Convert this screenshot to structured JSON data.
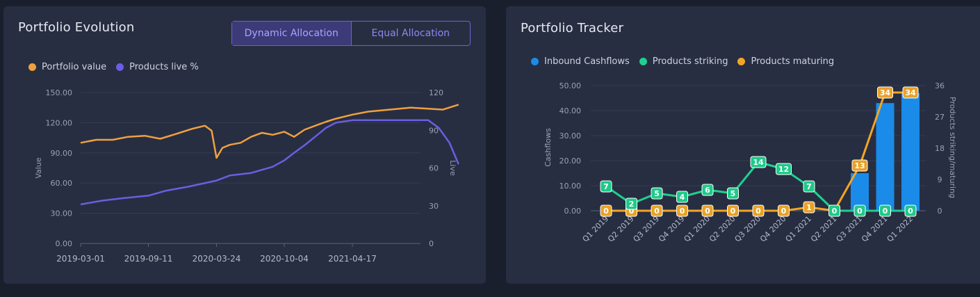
{
  "left_panel": {
    "title": "Portfolio Evolution",
    "toggle": {
      "dynamic_label": "Dynamic Allocation",
      "equal_label": "Equal Allocation",
      "active": "dynamic"
    }
  },
  "right_panel": {
    "title": "Portfolio Tracker"
  },
  "chart_data": [
    {
      "type": "line",
      "title": "Portfolio Evolution",
      "ylabel": "Value",
      "y2label": "Live",
      "ylim": [
        0,
        150
      ],
      "y2lim": [
        0,
        120
      ],
      "y_ticks": [
        "0.00",
        "30.00",
        "60.00",
        "90.00",
        "120.00",
        "150.00"
      ],
      "y2_ticks": [
        "0",
        "30",
        "60",
        "90",
        "120"
      ],
      "x_ticks": [
        "2019-03-01",
        "2019-09-11",
        "2020-03-24",
        "2020-10-04",
        "2021-04-17"
      ],
      "legend": [
        "Portfolio value",
        "Products live %"
      ],
      "legend_position": "top-left",
      "grid": true,
      "series": [
        {
          "name": "Portfolio value",
          "color": "#f0a040",
          "axis": "left",
          "x": [
            "2019-03-01",
            "2019-04-15",
            "2019-06-01",
            "2019-07-15",
            "2019-09-01",
            "2019-10-15",
            "2019-12-01",
            "2020-01-15",
            "2020-02-20",
            "2020-03-10",
            "2020-03-24",
            "2020-04-10",
            "2020-05-01",
            "2020-06-01",
            "2020-07-01",
            "2020-08-01",
            "2020-09-01",
            "2020-10-04",
            "2020-11-01",
            "2020-12-01",
            "2021-01-01",
            "2021-02-01",
            "2021-03-01",
            "2021-04-17",
            "2021-06-01",
            "2021-08-01",
            "2021-10-01",
            "2021-11-15",
            "2022-01-01",
            "2022-02-15"
          ],
          "values": [
            100,
            103,
            103,
            106,
            107,
            104,
            109,
            114,
            117,
            112,
            85,
            95,
            98,
            100,
            106,
            110,
            108,
            111,
            106,
            113,
            117,
            121,
            124,
            128,
            131,
            133,
            135,
            134,
            133,
            138
          ]
        },
        {
          "name": "Products live %",
          "color": "#6b5ee0",
          "axis": "right",
          "x": [
            "2019-03-01",
            "2019-05-01",
            "2019-07-01",
            "2019-09-11",
            "2019-11-01",
            "2020-01-01",
            "2020-03-24",
            "2020-05-01",
            "2020-07-01",
            "2020-09-01",
            "2020-10-04",
            "2020-11-01",
            "2020-12-01",
            "2021-01-01",
            "2021-02-01",
            "2021-03-01",
            "2021-04-17",
            "2021-06-01",
            "2021-08-01",
            "2021-10-01",
            "2021-11-20",
            "2021-12-20",
            "2022-01-20",
            "2022-02-15"
          ],
          "values": [
            31,
            34,
            36,
            38,
            42,
            45,
            50,
            54,
            56,
            61,
            66,
            72,
            78,
            85,
            92,
            96,
            98,
            98,
            98,
            98,
            98,
            92,
            80,
            63
          ]
        }
      ]
    },
    {
      "type": "bar",
      "title": "Portfolio Tracker",
      "ylabel": "Cashflows",
      "y2label": "Products striking/maturing",
      "ylim": [
        0,
        50
      ],
      "y2lim": [
        0,
        36
      ],
      "y_ticks": [
        "0.00",
        "10.00",
        "20.00",
        "30.00",
        "40.00",
        "50.00"
      ],
      "y2_ticks": [
        "0",
        "9",
        "18",
        "27",
        "36"
      ],
      "categories": [
        "Q1 2019",
        "Q2 2019",
        "Q3 2019",
        "Q4 2019",
        "Q1 2020",
        "Q2 2020",
        "Q3 2020",
        "Q4 2020",
        "Q1 2021",
        "Q2 2021",
        "Q3 2021",
        "Q4 2021",
        "Q1 2022"
      ],
      "legend_position": "top-left",
      "grid": true,
      "series": [
        {
          "name": "Inbound Cashflows",
          "type": "bar",
          "color": "#1a8be8",
          "axis": "left",
          "values": [
            0,
            0,
            0,
            0,
            0,
            0,
            0,
            0,
            0,
            0,
            15,
            43,
            47
          ]
        },
        {
          "name": "Products striking",
          "type": "line",
          "color": "#1fd08f",
          "axis": "right",
          "values": [
            7,
            2,
            5,
            4,
            6,
            5,
            14,
            12,
            7,
            0,
            0,
            0,
            0
          ]
        },
        {
          "name": "Products maturing",
          "type": "line",
          "color": "#f3a623",
          "axis": "right",
          "values": [
            0,
            0,
            0,
            0,
            0,
            0,
            0,
            0,
            1,
            0,
            13,
            34,
            34
          ]
        }
      ]
    }
  ]
}
